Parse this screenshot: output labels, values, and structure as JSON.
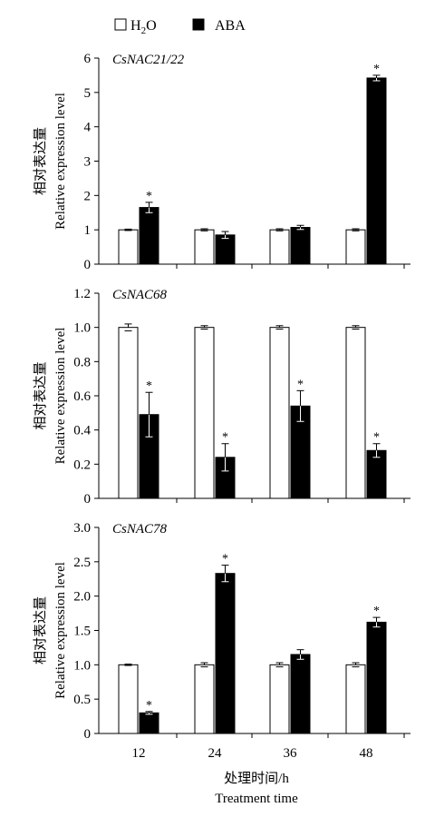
{
  "legend": {
    "h2o_label": "H",
    "h2o_sub": "2",
    "h2o_tail": "O",
    "aba_label": "ABA"
  },
  "x_title_cn": "处理时间/h",
  "x_title_en": "Treatment time",
  "colors": {
    "h2o": "#ffffff",
    "aba": "#000000",
    "axis": "#000000"
  },
  "chart_data": [
    {
      "type": "bar",
      "title": "CsNAC21/22",
      "ylabel_cn": "相对表达量",
      "ylabel_en": "Relative expression level",
      "categories": [
        "12",
        "24",
        "36",
        "48"
      ],
      "ylim": [
        0,
        6
      ],
      "yticks": [
        "0",
        "1",
        "2",
        "3",
        "4",
        "5",
        "6"
      ],
      "tick_values": [
        0,
        1,
        2,
        3,
        4,
        5,
        6
      ],
      "series": [
        {
          "name": "H2O",
          "values": [
            1.0,
            1.0,
            1.0,
            1.0
          ],
          "errors": [
            0.02,
            0.03,
            0.03,
            0.03
          ],
          "sig": [
            false,
            false,
            false,
            false
          ]
        },
        {
          "name": "ABA",
          "values": [
            1.65,
            0.85,
            1.07,
            5.42
          ],
          "errors": [
            0.15,
            0.1,
            0.06,
            0.08
          ],
          "sig": [
            true,
            false,
            false,
            true
          ]
        }
      ]
    },
    {
      "type": "bar",
      "title": "CsNAC68",
      "ylabel_cn": "相对表达量",
      "ylabel_en": "Relative expression level",
      "categories": [
        "12",
        "24",
        "36",
        "48"
      ],
      "ylim": [
        0,
        1.2
      ],
      "yticks": [
        "0",
        "0.2",
        "0.4",
        "0.6",
        "0.8",
        "1.0",
        "1.2"
      ],
      "tick_values": [
        0,
        0.2,
        0.4,
        0.6,
        0.8,
        1.0,
        1.2
      ],
      "series": [
        {
          "name": "H2O",
          "values": [
            1.0,
            1.0,
            1.0,
            1.0
          ],
          "errors": [
            0.02,
            0.01,
            0.01,
            0.01
          ],
          "sig": [
            false,
            false,
            false,
            false
          ]
        },
        {
          "name": "ABA",
          "values": [
            0.49,
            0.24,
            0.54,
            0.28
          ],
          "errors": [
            0.13,
            0.08,
            0.09,
            0.04
          ],
          "sig": [
            true,
            true,
            true,
            true
          ]
        }
      ]
    },
    {
      "type": "bar",
      "title": "CsNAC78",
      "ylabel_cn": "相对表达量",
      "ylabel_en": "Relative expression level",
      "categories": [
        "12",
        "24",
        "36",
        "48"
      ],
      "ylim": [
        0,
        3.0
      ],
      "yticks": [
        "0",
        "0.5",
        "1.0",
        "1.5",
        "2.0",
        "2.5",
        "3.0"
      ],
      "tick_values": [
        0,
        0.5,
        1.0,
        1.5,
        2.0,
        2.5,
        3.0
      ],
      "series": [
        {
          "name": "H2O",
          "values": [
            1.0,
            1.0,
            1.0,
            1.0
          ],
          "errors": [
            0.01,
            0.03,
            0.03,
            0.03
          ],
          "sig": [
            false,
            false,
            false,
            false
          ]
        },
        {
          "name": "ABA",
          "values": [
            0.3,
            2.33,
            1.15,
            1.62
          ],
          "errors": [
            0.02,
            0.12,
            0.07,
            0.07
          ],
          "sig": [
            true,
            true,
            false,
            true
          ]
        }
      ]
    }
  ]
}
